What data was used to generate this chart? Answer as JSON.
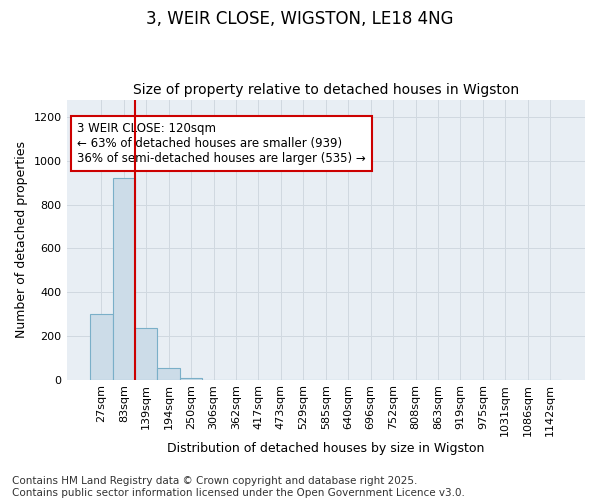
{
  "title": "3, WEIR CLOSE, WIGSTON, LE18 4NG",
  "subtitle": "Size of property relative to detached houses in Wigston",
  "xlabel": "Distribution of detached houses by size in Wigston",
  "ylabel": "Number of detached properties",
  "categories": [
    "27sqm",
    "83sqm",
    "139sqm",
    "194sqm",
    "250sqm",
    "306sqm",
    "362sqm",
    "417sqm",
    "473sqm",
    "529sqm",
    "585sqm",
    "640sqm",
    "696sqm",
    "752sqm",
    "808sqm",
    "863sqm",
    "919sqm",
    "975sqm",
    "1031sqm",
    "1086sqm",
    "1142sqm"
  ],
  "values": [
    300,
    920,
    235,
    55,
    5,
    0,
    0,
    0,
    0,
    0,
    0,
    0,
    0,
    0,
    0,
    0,
    0,
    0,
    0,
    0,
    0
  ],
  "bar_color": "#ccdce8",
  "bar_edgecolor": "#7aafc8",
  "annotation_text": "3 WEIR CLOSE: 120sqm\n← 63% of detached houses are smaller (939)\n36% of semi-detached houses are larger (535) →",
  "annotation_box_edgecolor": "#cc0000",
  "vline_color": "#cc0000",
  "vline_x": 1.5,
  "ylim": [
    0,
    1280
  ],
  "yticks": [
    0,
    200,
    400,
    600,
    800,
    1000,
    1200
  ],
  "grid_color": "#d0d8e0",
  "background_color": "#e8eef4",
  "footer": "Contains HM Land Registry data © Crown copyright and database right 2025.\nContains public sector information licensed under the Open Government Licence v3.0.",
  "title_fontsize": 12,
  "subtitle_fontsize": 10,
  "xlabel_fontsize": 9,
  "ylabel_fontsize": 9,
  "tick_fontsize": 8,
  "annotation_fontsize": 8.5,
  "footer_fontsize": 7.5
}
